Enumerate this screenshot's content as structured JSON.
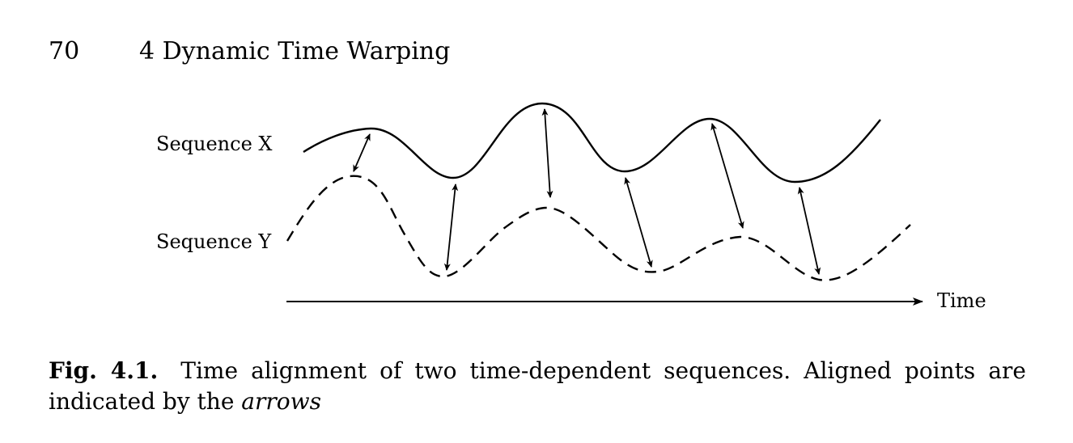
{
  "header": {
    "page_number": "70",
    "chapter_title": "4 Dynamic Time Warping"
  },
  "figure": {
    "label_x": "Sequence X",
    "label_y": "Sequence Y",
    "axis_label": "Time"
  },
  "caption": {
    "label": "Fig. 4.1.",
    "text_main": "Time alignment of two time-dependent sequences. Aligned points are indicated by the",
    "text_emphasis": "arrows"
  }
}
